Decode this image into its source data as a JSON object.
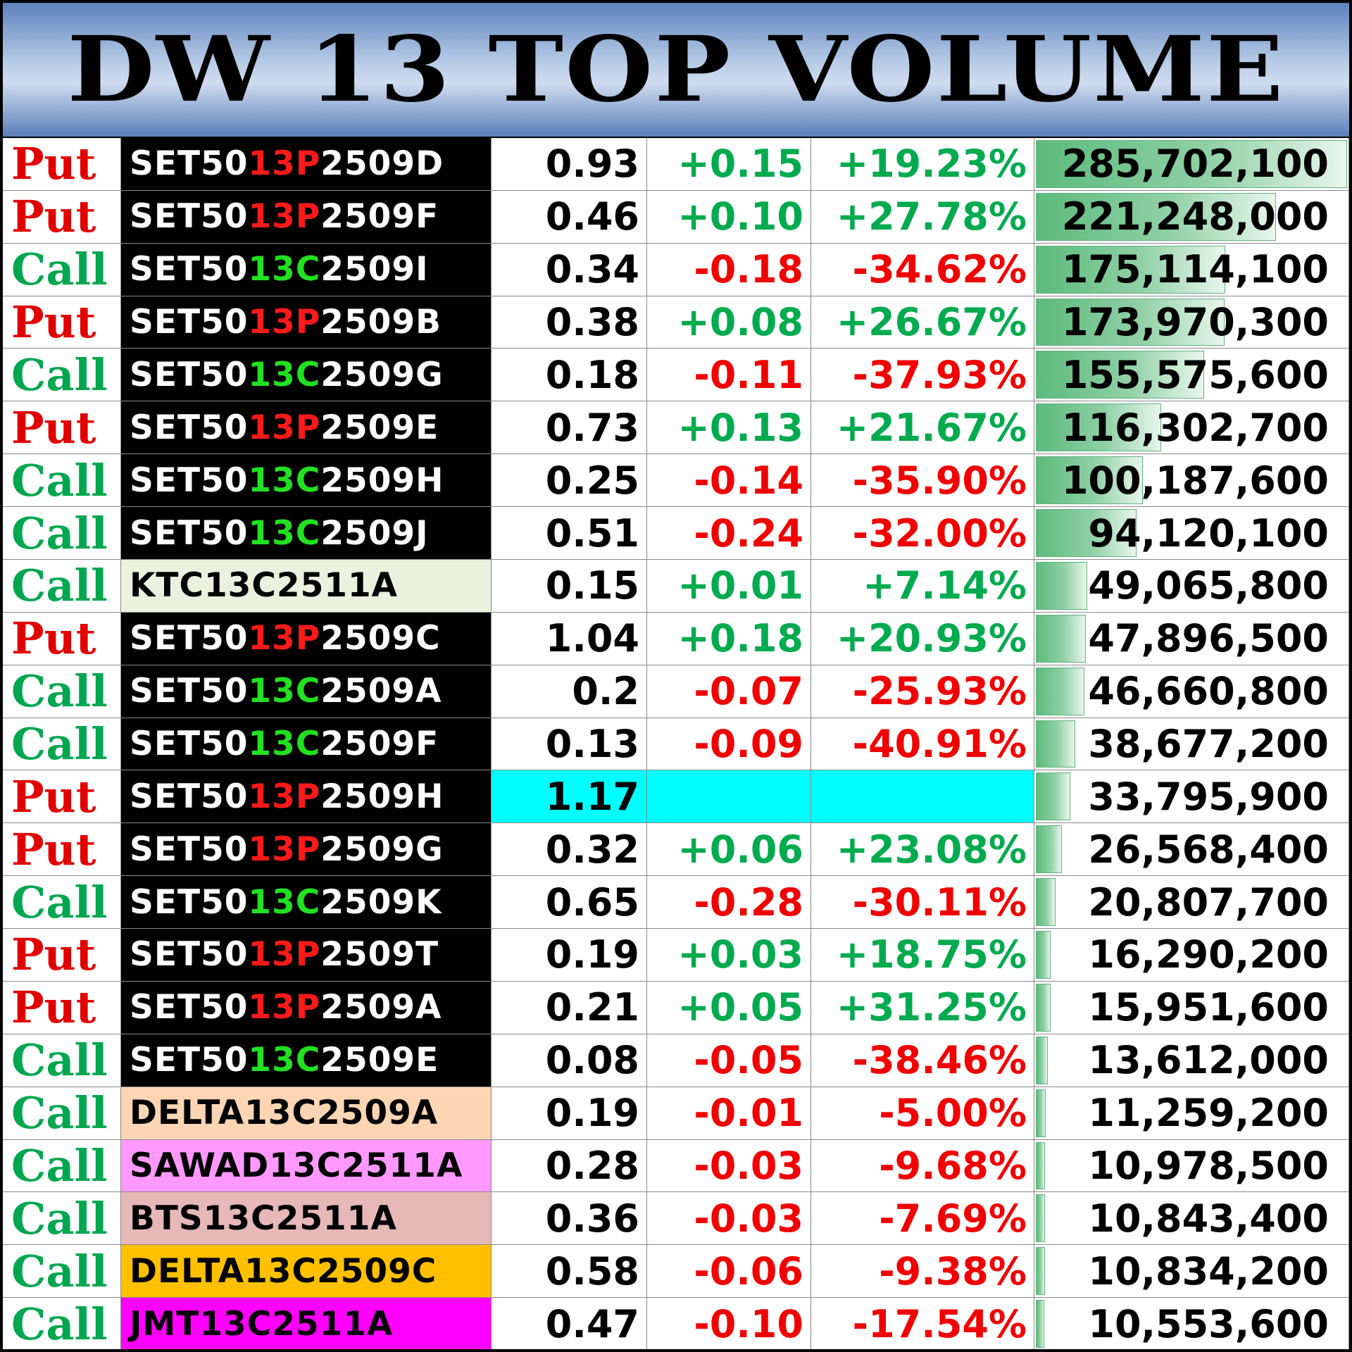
{
  "header": {
    "title": "DW 13 TOP VOLUME"
  },
  "colors": {
    "put": "#e00000",
    "call": "#00a650",
    "up": "#00aa4f",
    "down": "#f00000",
    "highlight": "#00ffff",
    "volume_bar": "#5cba7c"
  },
  "volume_bar_max": 285702100,
  "rows": [
    {
      "type": "Put",
      "prefix": "SET50",
      "mid": "13P",
      "suffix": "2509D",
      "price": "0.93",
      "change": "+0.15",
      "pct": "+19.23%",
      "volume": "285,702,100",
      "volume_value": 285702100
    },
    {
      "type": "Put",
      "prefix": "SET50",
      "mid": "13P",
      "suffix": "2509F",
      "price": "0.46",
      "change": "+0.10",
      "pct": "+27.78%",
      "volume": "221,248,000",
      "volume_value": 221248000
    },
    {
      "type": "Call",
      "prefix": "SET50",
      "mid": "13C",
      "suffix": "2509I",
      "price": "0.34",
      "change": "-0.18",
      "pct": "-34.62%",
      "volume": "175,114,100",
      "volume_value": 175114100
    },
    {
      "type": "Put",
      "prefix": "SET50",
      "mid": "13P",
      "suffix": "2509B",
      "price": "0.38",
      "change": "+0.08",
      "pct": "+26.67%",
      "volume": "173,970,300",
      "volume_value": 173970300
    },
    {
      "type": "Call",
      "prefix": "SET50",
      "mid": "13C",
      "suffix": "2509G",
      "price": "0.18",
      "change": "-0.11",
      "pct": "-37.93%",
      "volume": "155,575,600",
      "volume_value": 155575600
    },
    {
      "type": "Put",
      "prefix": "SET50",
      "mid": "13P",
      "suffix": "2509E",
      "price": "0.73",
      "change": "+0.13",
      "pct": "+21.67%",
      "volume": "116,302,700",
      "volume_value": 116302700
    },
    {
      "type": "Call",
      "prefix": "SET50",
      "mid": "13C",
      "suffix": "2509H",
      "price": "0.25",
      "change": "-0.14",
      "pct": "-35.90%",
      "volume": "100,187,600",
      "volume_value": 100187600
    },
    {
      "type": "Call",
      "prefix": "SET50",
      "mid": "13C",
      "suffix": "2509J",
      "price": "0.51",
      "change": "-0.24",
      "pct": "-32.00%",
      "volume": "94,120,100",
      "volume_value": 94120100
    },
    {
      "type": "Call",
      "name": "KTC13C2511A",
      "name_bg": "#ebf1de",
      "price": "0.15",
      "change": "+0.01",
      "pct": "+7.14%",
      "volume": "49,065,800",
      "volume_value": 49065800
    },
    {
      "type": "Put",
      "prefix": "SET50",
      "mid": "13P",
      "suffix": "2509C",
      "price": "1.04",
      "change": "+0.18",
      "pct": "+20.93%",
      "volume": "47,896,500",
      "volume_value": 47896500
    },
    {
      "type": "Call",
      "prefix": "SET50",
      "mid": "13C",
      "suffix": "2509A",
      "price": "0.2",
      "change": "-0.07",
      "pct": "-25.93%",
      "volume": "46,660,800",
      "volume_value": 46660800
    },
    {
      "type": "Call",
      "prefix": "SET50",
      "mid": "13C",
      "suffix": "2509F",
      "price": "0.13",
      "change": "-0.09",
      "pct": "-40.91%",
      "volume": "38,677,200",
      "volume_value": 38677200
    },
    {
      "type": "Put",
      "prefix": "SET50",
      "mid": "13P",
      "suffix": "2509H",
      "price": "1.17",
      "change": "",
      "pct": "",
      "highlight": true,
      "volume": "33,795,900",
      "volume_value": 33795900
    },
    {
      "type": "Put",
      "prefix": "SET50",
      "mid": "13P",
      "suffix": "2509G",
      "price": "0.32",
      "change": "+0.06",
      "pct": "+23.08%",
      "volume": "26,568,400",
      "volume_value": 26568400
    },
    {
      "type": "Call",
      "prefix": "SET50",
      "mid": "13C",
      "suffix": "2509K",
      "price": "0.65",
      "change": "-0.28",
      "pct": "-30.11%",
      "volume": "20,807,700",
      "volume_value": 20807700
    },
    {
      "type": "Put",
      "prefix": "SET50",
      "mid": "13P",
      "suffix": "2509T",
      "price": "0.19",
      "change": "+0.03",
      "pct": "+18.75%",
      "volume": "16,290,200",
      "volume_value": 16290200
    },
    {
      "type": "Put",
      "prefix": "SET50",
      "mid": "13P",
      "suffix": "2509A",
      "price": "0.21",
      "change": "+0.05",
      "pct": "+31.25%",
      "volume": "15,951,600",
      "volume_value": 15951600
    },
    {
      "type": "Call",
      "prefix": "SET50",
      "mid": "13C",
      "suffix": "2509E",
      "price": "0.08",
      "change": "-0.05",
      "pct": "-38.46%",
      "volume": "13,612,000",
      "volume_value": 13612000
    },
    {
      "type": "Call",
      "name": "DELTA13C2509A",
      "name_bg": "#fcd5b4",
      "price": "0.19",
      "change": "-0.01",
      "pct": "-5.00%",
      "volume": "11,259,200",
      "volume_value": 11259200
    },
    {
      "type": "Call",
      "name": "SAWAD13C2511A",
      "name_bg": "#ff99ff",
      "price": "0.28",
      "change": "-0.03",
      "pct": "-9.68%",
      "volume": "10,978,500",
      "volume_value": 10978500
    },
    {
      "type": "Call",
      "name": "BTS13C2511A",
      "name_bg": "#e6b8b7",
      "price": "0.36",
      "change": "-0.03",
      "pct": "-7.69%",
      "volume": "10,843,400",
      "volume_value": 10843400
    },
    {
      "type": "Call",
      "name": "DELTA13C2509C",
      "name_bg": "#ffc000",
      "price": "0.58",
      "change": "-0.06",
      "pct": "-9.38%",
      "volume": "10,834,200",
      "volume_value": 10834200
    },
    {
      "type": "Call",
      "name": "JMT13C2511A",
      "name_bg": "#ff00ff",
      "price": "0.47",
      "change": "-0.10",
      "pct": "-17.54%",
      "volume": "10,553,600",
      "volume_value": 10553600
    }
  ]
}
